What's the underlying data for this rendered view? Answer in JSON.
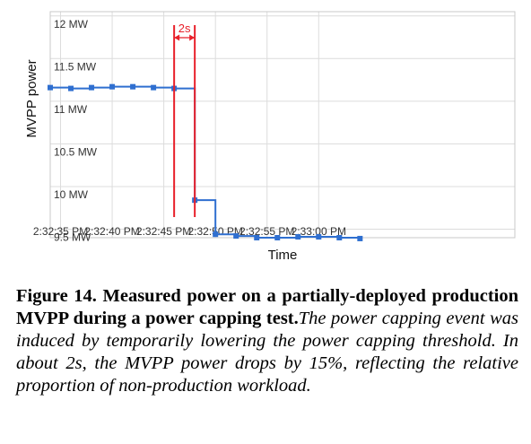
{
  "chart_data": {
    "type": "line",
    "step": true,
    "xlabel": "Time",
    "ylabel": "MVPP power",
    "ylim": [
      9.4,
      12.05
    ],
    "yticks": [
      {
        "value": 12,
        "label": "12 MW"
      },
      {
        "value": 11.5,
        "label": "11.5 MW"
      },
      {
        "value": 11,
        "label": "11 MW"
      },
      {
        "value": 10.5,
        "label": "10.5 MW"
      },
      {
        "value": 10,
        "label": "10 MW"
      },
      {
        "value": 9.5,
        "label": "9.5 MW"
      }
    ],
    "xlim": [
      93,
      183
    ],
    "xticks": [
      {
        "value": 95,
        "label": "2:32:35 PM"
      },
      {
        "value": 105,
        "label": "2:32:40 PM"
      },
      {
        "value": 115,
        "label": "2:32:45 PM"
      },
      {
        "value": 125,
        "label": "2:32:50 PM"
      },
      {
        "value": 135,
        "label": "2:32:55 PM"
      },
      {
        "value": 145,
        "label": "2:33:00 PM"
      }
    ],
    "grid": true,
    "color": "#2f6fd0",
    "points": [
      [
        93,
        11.16
      ],
      [
        97,
        11.15
      ],
      [
        101,
        11.16
      ],
      [
        105,
        11.17
      ],
      [
        109,
        11.17
      ],
      [
        113,
        11.16
      ],
      [
        117,
        11.15
      ],
      [
        121,
        9.84
      ],
      [
        125,
        9.44
      ],
      [
        129,
        9.42
      ],
      [
        133,
        9.4
      ],
      [
        137,
        9.4
      ],
      [
        141,
        9.41
      ],
      [
        145,
        9.41
      ],
      [
        149,
        9.4
      ],
      [
        153,
        9.39
      ]
    ],
    "annotation": {
      "label": "2s",
      "x_start": 117,
      "x_end": 121,
      "color": "#e8202a"
    }
  },
  "caption": {
    "bold": "Figure 14. Measured power on a partially-deployed production MVPP during a power capping test.",
    "italic": "The power capping event was induced by temporarily lowering the power capping threshold. In about 2s, the MVPP power drops by 15%, reflecting the relative proportion of non-production workload."
  }
}
